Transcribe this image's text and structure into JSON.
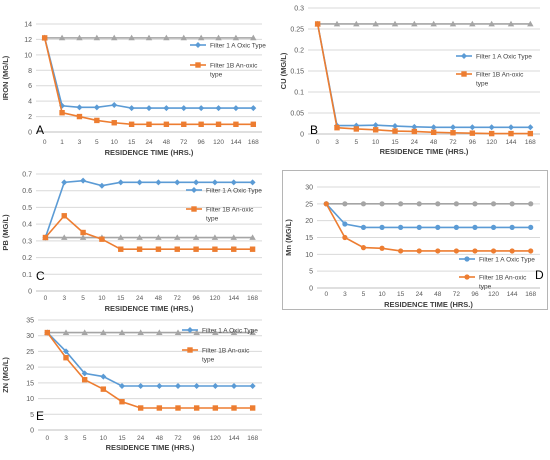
{
  "colors": {
    "blue": "#5b9bd5",
    "orange": "#ed7d31",
    "gray": "#a5a5a5",
    "grid": "#d9d9d9",
    "axis_text": "#595959",
    "title_text": "#404040"
  },
  "chart_data": [
    {
      "type": "line",
      "panel_letter": "A",
      "xlabel": "RESIDENCE TIME (HRS.)",
      "ylabel": "IRON (MG/L)",
      "x": [
        "0",
        "1",
        "3",
        "5",
        "10",
        "15",
        "24",
        "48",
        "72",
        "96",
        "120",
        "144",
        "168"
      ],
      "ylim": [
        0,
        14
      ],
      "yticks": [
        "0",
        "2",
        "4",
        "6",
        "8",
        "10",
        "12",
        "14"
      ],
      "grid": true,
      "legend": "right",
      "series": [
        {
          "name": "Filter 1 A Oxic Type",
          "color": "blue",
          "marker": "diamond",
          "values": [
            12.2,
            3.4,
            3.2,
            3.2,
            3.5,
            3.1,
            3.1,
            3.1,
            3.1,
            3.1,
            3.1,
            3.1,
            3.1
          ]
        },
        {
          "name": "Filter 1B An-oxic type",
          "color": "orange",
          "marker": "square",
          "values": [
            12.2,
            2.5,
            2.0,
            1.5,
            1.2,
            1.0,
            1.0,
            1.0,
            1.0,
            1.0,
            1.0,
            1.0,
            1.0
          ]
        },
        {
          "name": "",
          "color": "gray",
          "marker": "triangle",
          "values": [
            12.2,
            12.2,
            12.2,
            12.2,
            12.2,
            12.2,
            12.2,
            12.2,
            12.2,
            12.2,
            12.2,
            12.2,
            12.2
          ]
        }
      ]
    },
    {
      "type": "line",
      "panel_letter": "B",
      "xlabel": "RESIDENCE TIME (HRS.)",
      "ylabel": "CU (MG/L)",
      "x": [
        "0",
        "3",
        "5",
        "10",
        "15",
        "24",
        "48",
        "72",
        "96",
        "120",
        "144",
        "168"
      ],
      "ylim": [
        0,
        0.3
      ],
      "yticks": [
        "0",
        "0.05",
        "0.1",
        "0.15",
        "0.2",
        "0.25",
        "0.3"
      ],
      "grid": true,
      "legend": "right",
      "series": [
        {
          "name": "Filter 1 A Oxic Type",
          "color": "blue",
          "marker": "diamond",
          "values": [
            0.262,
            0.02,
            0.02,
            0.021,
            0.019,
            0.017,
            0.016,
            0.016,
            0.016,
            0.016,
            0.016,
            0.016
          ]
        },
        {
          "name": "Filter 1B An-oxic type",
          "color": "orange",
          "marker": "square",
          "values": [
            0.262,
            0.015,
            0.012,
            0.01,
            0.007,
            0.006,
            0.004,
            0.003,
            0.002,
            0.001,
            0.001,
            0.001
          ]
        },
        {
          "name": "",
          "color": "gray",
          "marker": "triangle",
          "values": [
            0.262,
            0.262,
            0.262,
            0.262,
            0.262,
            0.262,
            0.262,
            0.262,
            0.262,
            0.262,
            0.262,
            0.262
          ]
        }
      ]
    },
    {
      "type": "line",
      "panel_letter": "C",
      "xlabel": "RESIDENCE TIME (HRS.)",
      "ylabel": "PB (MG/L)",
      "x": [
        "0",
        "3",
        "5",
        "10",
        "15",
        "24",
        "48",
        "72",
        "96",
        "120",
        "144",
        "168"
      ],
      "ylim": [
        0,
        0.7
      ],
      "yticks": [
        "0",
        "0.1",
        "0.2",
        "0.3",
        "0.4",
        "0.5",
        "0.6",
        "0.7"
      ],
      "grid": true,
      "legend": "right",
      "series": [
        {
          "name": "Filter 1 A Oxic Type",
          "color": "blue",
          "marker": "diamond",
          "values": [
            0.32,
            0.65,
            0.66,
            0.63,
            0.65,
            0.65,
            0.65,
            0.65,
            0.65,
            0.65,
            0.65,
            0.65
          ]
        },
        {
          "name": "Filter 1B An-oxic type",
          "color": "orange",
          "marker": "square",
          "values": [
            0.32,
            0.45,
            0.35,
            0.31,
            0.25,
            0.25,
            0.25,
            0.25,
            0.25,
            0.25,
            0.25,
            0.25
          ]
        },
        {
          "name": "",
          "color": "gray",
          "marker": "triangle",
          "values": [
            0.32,
            0.32,
            0.32,
            0.32,
            0.32,
            0.32,
            0.32,
            0.32,
            0.32,
            0.32,
            0.32,
            0.32
          ]
        }
      ]
    },
    {
      "type": "line",
      "panel_letter": "D",
      "xlabel": "RESIDENCE TIME (HRS.)",
      "ylabel": "Mn (MG/L)",
      "x": [
        "0",
        "3",
        "5",
        "10",
        "15",
        "24",
        "48",
        "72",
        "96",
        "120",
        "144",
        "168"
      ],
      "ylim": [
        0,
        30
      ],
      "yticks": [
        "0",
        "5",
        "10",
        "15",
        "20",
        "25",
        "30"
      ],
      "grid": true,
      "legend": "bottom-right",
      "series": [
        {
          "name": "Filter 1 A Oxic Type",
          "color": "blue",
          "marker": "circle",
          "values": [
            25,
            19,
            18,
            18,
            18,
            18,
            18,
            18,
            18,
            18,
            18,
            18
          ]
        },
        {
          "name": "Filter 1B An-oxic type",
          "color": "orange",
          "marker": "circle",
          "values": [
            25,
            15,
            12,
            11.8,
            11,
            11,
            11,
            11,
            11,
            11,
            11,
            11
          ]
        },
        {
          "name": "",
          "color": "gray",
          "marker": "circle",
          "values": [
            25,
            25,
            25,
            25,
            25,
            25,
            25,
            25,
            25,
            25,
            25,
            25
          ]
        }
      ]
    },
    {
      "type": "line",
      "panel_letter": "E",
      "xlabel": "RESIDENCE TIME (HRS.)",
      "ylabel": "ZN (MG/L)",
      "x": [
        "0",
        "3",
        "5",
        "10",
        "15",
        "24",
        "48",
        "72",
        "96",
        "120",
        "144",
        "168"
      ],
      "ylim": [
        0,
        35
      ],
      "yticks": [
        "0",
        "5",
        "10",
        "15",
        "20",
        "25",
        "30",
        "35"
      ],
      "grid": true,
      "legend": "right",
      "series": [
        {
          "name": "Filter 1 A Oxic Type",
          "color": "blue",
          "marker": "diamond",
          "values": [
            31,
            25,
            18,
            17,
            14,
            14,
            14,
            14,
            14,
            14,
            14,
            14
          ]
        },
        {
          "name": "Filter 1B An-oxic type",
          "color": "orange",
          "marker": "square",
          "values": [
            31,
            23,
            16,
            13,
            9,
            7,
            7,
            7,
            7,
            7,
            7,
            7
          ]
        },
        {
          "name": "",
          "color": "gray",
          "marker": "triangle",
          "values": [
            31,
            31,
            31,
            31,
            31,
            31,
            31,
            31,
            31,
            31,
            31,
            31
          ]
        }
      ]
    }
  ]
}
